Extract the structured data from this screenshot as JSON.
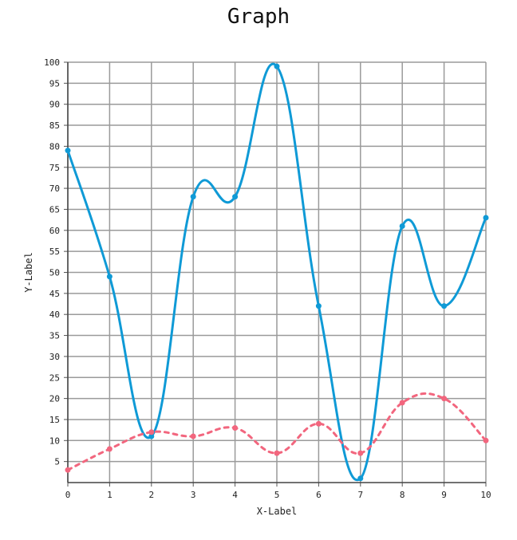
{
  "chart_data": {
    "type": "line",
    "title": "Graph",
    "xlabel": "X-Label",
    "ylabel": "Y-Label",
    "x": [
      0,
      1,
      2,
      3,
      4,
      5,
      6,
      7,
      8,
      9,
      10
    ],
    "xlim": [
      0,
      10
    ],
    "ylim": [
      0,
      100
    ],
    "x_ticks": [
      "0",
      "1",
      "2",
      "3",
      "4",
      "5",
      "6",
      "7",
      "8",
      "9",
      "10"
    ],
    "y_ticks": [
      "5",
      "10",
      "15",
      "20",
      "25",
      "30",
      "35",
      "40",
      "45",
      "50",
      "55",
      "60",
      "65",
      "70",
      "75",
      "80",
      "85",
      "90",
      "95",
      "100"
    ],
    "grid": true,
    "series": [
      {
        "values": [
          79,
          49,
          11,
          68,
          68,
          99,
          42,
          1,
          61,
          42,
          63
        ],
        "color": "#0f9ad6",
        "style": "solid"
      },
      {
        "values": [
          3,
          8,
          12,
          11,
          13,
          7,
          14,
          7,
          19,
          20,
          10
        ],
        "color": "#f2667e",
        "style": "dashed"
      }
    ]
  }
}
